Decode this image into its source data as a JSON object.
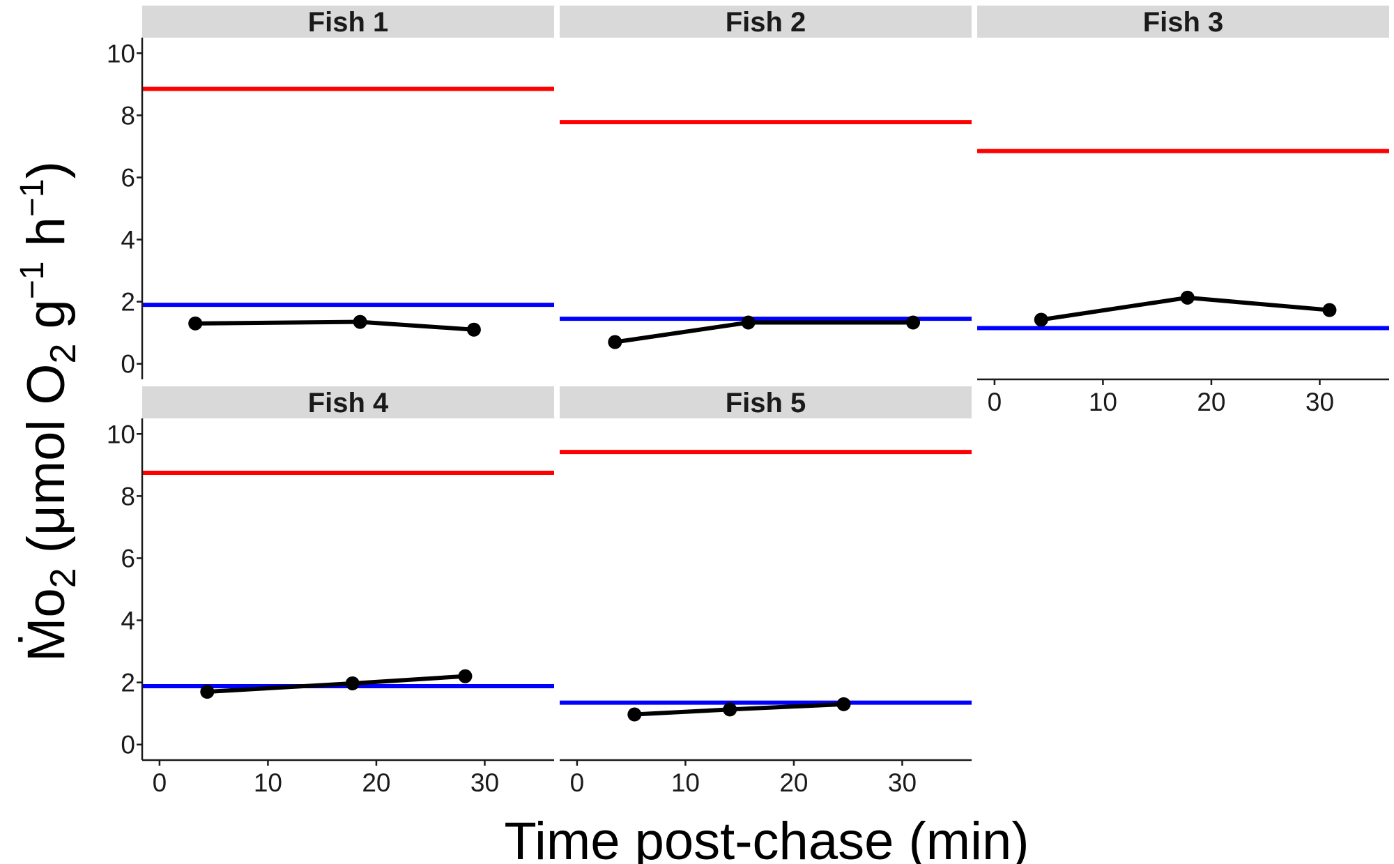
{
  "chart_data": {
    "type": "line",
    "xlabel": "Time post-chase (min)",
    "ylabel": {
      "main": "Ṁo",
      "sub": "2",
      "unit_open": " (μmol O",
      "unit_sub": "2",
      "g": " g",
      "g_sup": "−1",
      "h": " h",
      "h_sup": "−1",
      "close": ")"
    },
    "xlim": [
      -1.6,
      36.4
    ],
    "ylim": [
      -0.5,
      10.5
    ],
    "x_ticks": [
      0,
      10,
      20,
      30
    ],
    "y_ticks": [
      0,
      2,
      4,
      6,
      8,
      10
    ],
    "colors": {
      "upper_line": "#ff0000",
      "lower_line": "#0000ff",
      "points": "#000000",
      "strip": "#d9d9d9"
    },
    "panels": [
      {
        "label": "Fish 1",
        "upper": 8.85,
        "lower": 1.9,
        "points": {
          "x": [
            3.3,
            18.5,
            29.0
          ],
          "y": [
            1.3,
            1.35,
            1.1
          ]
        }
      },
      {
        "label": "Fish 2",
        "upper": 7.78,
        "lower": 1.45,
        "points": {
          "x": [
            3.5,
            15.8,
            31.0
          ],
          "y": [
            0.7,
            1.33,
            1.33
          ]
        }
      },
      {
        "label": "Fish 3",
        "upper": 6.85,
        "lower": 1.15,
        "points": {
          "x": [
            4.3,
            17.8,
            30.9
          ],
          "y": [
            1.42,
            2.13,
            1.73
          ]
        }
      },
      {
        "label": "Fish 4",
        "upper": 8.75,
        "lower": 1.88,
        "points": {
          "x": [
            4.4,
            17.8,
            28.2
          ],
          "y": [
            1.7,
            1.97,
            2.2
          ]
        }
      },
      {
        "label": "Fish 5",
        "upper": 9.42,
        "lower": 1.35,
        "points": {
          "x": [
            5.3,
            14.1,
            24.6
          ],
          "y": [
            0.97,
            1.13,
            1.3
          ]
        }
      }
    ]
  }
}
